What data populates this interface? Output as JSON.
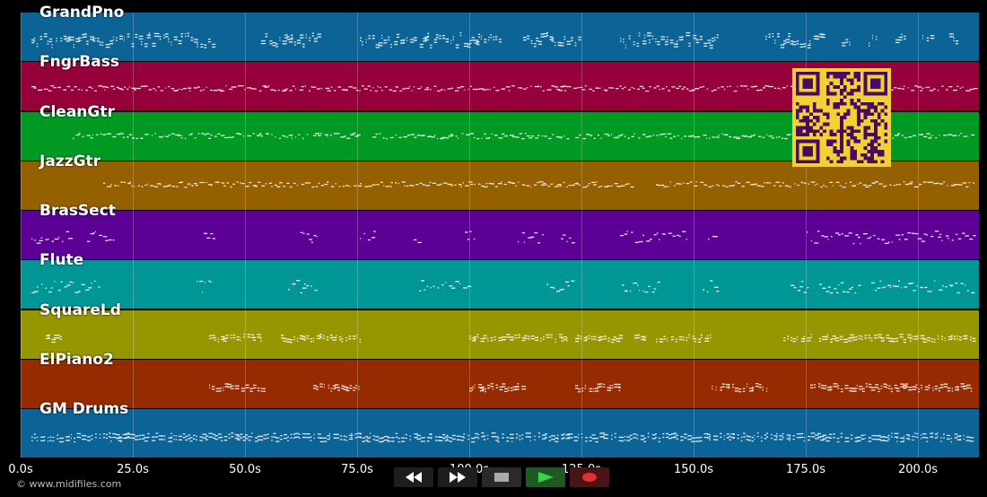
{
  "tracks": [
    {
      "name": "GrandPno",
      "color": "#0b6396"
    },
    {
      "name": "FngrBass",
      "color": "#96003b"
    },
    {
      "name": "CleanGtr",
      "color": "#009a22"
    },
    {
      "name": "JazzGtr",
      "color": "#946000"
    },
    {
      "name": "BrasSect",
      "color": "#5c0096"
    },
    {
      "name": "Flute",
      "color": "#009696"
    },
    {
      "name": "SquareLd",
      "color": "#969600"
    },
    {
      "name": "ElPiano2",
      "color": "#962b00"
    },
    {
      "name": "GM Drums",
      "color": "#0b6396"
    }
  ],
  "axis": {
    "ticks": [
      "0.0s",
      "25.0s",
      "50.0s",
      "75.0s",
      "100.0s",
      "125.0s",
      "150.0s",
      "175.0s",
      "200.0s"
    ]
  },
  "copyright": "© www.midifiles.com",
  "controls": [
    {
      "name": "rewind-button",
      "icon": "rewind-icon",
      "bg": "#1e1e1e"
    },
    {
      "name": "fast-forward-button",
      "icon": "fast-forward-icon",
      "bg": "#1e1e1e"
    },
    {
      "name": "stop-button",
      "icon": "stop-icon",
      "bg": "#2a2a2a"
    },
    {
      "name": "play-button",
      "icon": "play-icon",
      "bg": "#1f5a26"
    },
    {
      "name": "record-button",
      "icon": "record-icon",
      "bg": "#4a1414"
    }
  ],
  "qr": {
    "icon": "qr-code-icon",
    "fg": "#4a0a60",
    "bg": "#f2d233"
  }
}
